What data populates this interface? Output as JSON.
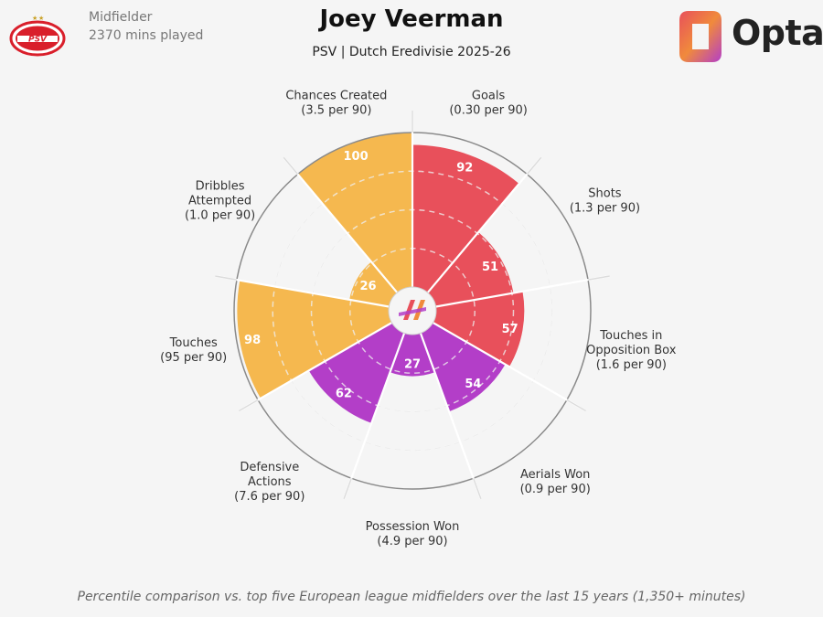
{
  "header": {
    "player_name": "Joey Veerman",
    "subtitle": "PSV | Dutch Eredivisie 2025-26",
    "position": "Midfielder",
    "minutes": "2370 mins played",
    "team_badge_text": "PSV",
    "brand": "Opta"
  },
  "footnote": "Percentile comparison vs. top five European league midfielders over the last 15 years (1,350+ minutes)",
  "colors": {
    "attacking": "#e8505b",
    "possession": "#f5b84f",
    "defending": "#b33ec8",
    "background": "#f5f5f5",
    "grid": "#d6d6d6"
  },
  "chart_data": {
    "type": "polar-bar",
    "scale": [
      0,
      100
    ],
    "metrics": [
      {
        "label": "Goals",
        "sublabel": "(0.30 per 90)",
        "percentile": 92,
        "group": "attacking"
      },
      {
        "label": "Shots",
        "sublabel": "(1.3 per 90)",
        "percentile": 51,
        "group": "attacking"
      },
      {
        "label": "Touches in Opposition Box",
        "sublabel": "(1.6 per 90)",
        "percentile": 57,
        "group": "attacking"
      },
      {
        "label": "Aerials Won",
        "sublabel": "(0.9 per 90)",
        "percentile": 54,
        "group": "defending"
      },
      {
        "label": "Possession Won",
        "sublabel": "(4.9 per 90)",
        "percentile": 27,
        "group": "defending"
      },
      {
        "label": "Defensive Actions",
        "sublabel": "(7.6 per 90)",
        "percentile": 62,
        "group": "defending"
      },
      {
        "label": "Touches",
        "sublabel": "(95 per 90)",
        "percentile": 98,
        "group": "possession"
      },
      {
        "label": "Dribbles Attempted",
        "sublabel": "(1.0 per 90)",
        "percentile": 26,
        "group": "possession"
      },
      {
        "label": "Chances Created",
        "sublabel": "(3.5 per 90)",
        "percentile": 100,
        "group": "possession"
      }
    ]
  }
}
